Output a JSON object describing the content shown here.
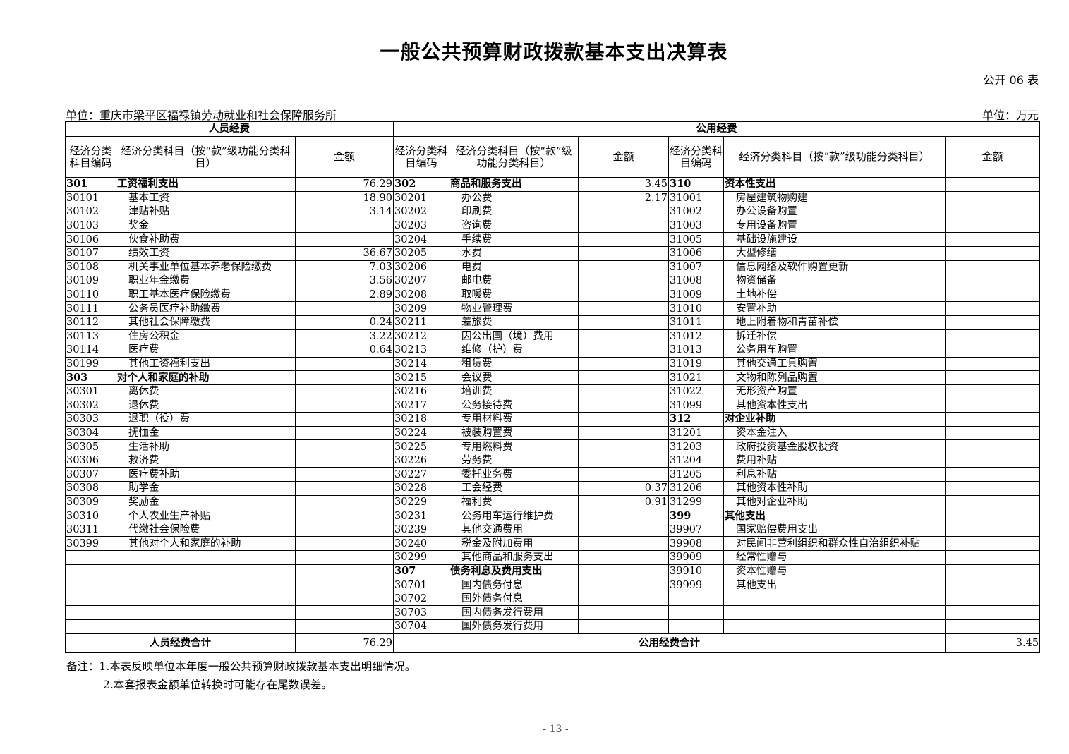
{
  "title": "一般公共预算财政拨款基本支出决算表",
  "table_no": "公开 06 表",
  "unit_org": "单位：重庆市梁平区福禄镇劳动就业和社会保障服务所",
  "unit_money": "单位：万元",
  "groups": {
    "personnel": "人员经费",
    "public": "公用经费"
  },
  "headers": {
    "code": "经济分类科目编码",
    "name_left": "经济分类科目（按“款”级功能分类科目）",
    "name_mid": "经济分类科目（按“款”级功能分类科目）",
    "name_right": "经济分类科目（按“款”级功能分类科目）",
    "amount": "金额"
  },
  "rows": [
    [
      "301",
      "工资福利支出",
      "76.29",
      "302",
      "商品和服务支出",
      "3.45",
      "310",
      "资本性支出",
      ""
    ],
    [
      "30101",
      "基本工资",
      "18.90",
      "30201",
      "办公费",
      "2.17",
      "31001",
      "房屋建筑物购建",
      ""
    ],
    [
      "30102",
      "津贴补贴",
      "3.14",
      "30202",
      "印刷费",
      "",
      "31002",
      "办公设备购置",
      ""
    ],
    [
      "30103",
      "奖金",
      "",
      "30203",
      "咨询费",
      "",
      "31003",
      "专用设备购置",
      ""
    ],
    [
      "30106",
      "伙食补助费",
      "",
      "30204",
      "手续费",
      "",
      "31005",
      "基础设施建设",
      ""
    ],
    [
      "30107",
      "绩效工资",
      "36.67",
      "30205",
      "水费",
      "",
      "31006",
      "大型修缮",
      ""
    ],
    [
      "30108",
      "机关事业单位基本养老保险缴费",
      "7.03",
      "30206",
      "电费",
      "",
      "31007",
      "信息网络及软件购置更新",
      ""
    ],
    [
      "30109",
      "职业年金缴费",
      "3.56",
      "30207",
      "邮电费",
      "",
      "31008",
      "物资储备",
      ""
    ],
    [
      "30110",
      "职工基本医疗保险缴费",
      "2.89",
      "30208",
      "取暖费",
      "",
      "31009",
      "土地补偿",
      ""
    ],
    [
      "30111",
      "公务员医疗补助缴费",
      "",
      "30209",
      "物业管理费",
      "",
      "31010",
      "安置补助",
      ""
    ],
    [
      "30112",
      "其他社会保障缴费",
      "0.24",
      "30211",
      "差旅费",
      "",
      "31011",
      "地上附着物和青苗补偿",
      ""
    ],
    [
      "30113",
      "住房公积金",
      "3.22",
      "30212",
      "因公出国（境）费用",
      "",
      "31012",
      "拆迁补偿",
      ""
    ],
    [
      "30114",
      "医疗费",
      "0.64",
      "30213",
      "维修（护）费",
      "",
      "31013",
      "公务用车购置",
      ""
    ],
    [
      "30199",
      "其他工资福利支出",
      "",
      "30214",
      "租赁费",
      "",
      "31019",
      "其他交通工具购置",
      ""
    ],
    [
      "303",
      "对个人和家庭的补助",
      "",
      "30215",
      "会议费",
      "",
      "31021",
      "文物和陈列品购置",
      ""
    ],
    [
      "30301",
      "离休费",
      "",
      "30216",
      "培训费",
      "",
      "31022",
      "无形资产购置",
      ""
    ],
    [
      "30302",
      "退休费",
      "",
      "30217",
      "公务接待费",
      "",
      "31099",
      "其他资本性支出",
      ""
    ],
    [
      "30303",
      "退职（役）费",
      "",
      "30218",
      "专用材料费",
      "",
      "312",
      "对企业补助",
      ""
    ],
    [
      "30304",
      "抚恤金",
      "",
      "30224",
      "被装购置费",
      "",
      "31201",
      "资本金注入",
      ""
    ],
    [
      "30305",
      "生活补助",
      "",
      "30225",
      "专用燃料费",
      "",
      "31203",
      "政府投资基金股权投资",
      ""
    ],
    [
      "30306",
      "救济费",
      "",
      "30226",
      "劳务费",
      "",
      "31204",
      "费用补贴",
      ""
    ],
    [
      "30307",
      "医疗费补助",
      "",
      "30227",
      "委托业务费",
      "",
      "31205",
      "利息补贴",
      ""
    ],
    [
      "30308",
      "助学金",
      "",
      "30228",
      "工会经费",
      "0.37",
      "31206",
      "其他资本性补助",
      ""
    ],
    [
      "30309",
      "奖励金",
      "",
      "30229",
      "福利费",
      "0.91",
      "31299",
      "其他对企业补助",
      ""
    ],
    [
      "30310",
      "个人农业生产补贴",
      "",
      "30231",
      "公务用车运行维护费",
      "",
      "399",
      "其他支出",
      ""
    ],
    [
      "30311",
      "代缴社会保险费",
      "",
      "30239",
      "其他交通费用",
      "",
      "39907",
      "国家赔偿费用支出",
      ""
    ],
    [
      "30399",
      "其他对个人和家庭的补助",
      "",
      "30240",
      "税金及附加费用",
      "",
      "39908",
      "对民间非营利组织和群众性自治组织补贴",
      ""
    ],
    [
      "",
      "",
      "",
      "30299",
      "其他商品和服务支出",
      "",
      "39909",
      "经常性赠与",
      ""
    ],
    [
      "",
      "",
      "",
      "307",
      "债务利息及费用支出",
      "",
      "39910",
      "资本性赠与",
      ""
    ],
    [
      "",
      "",
      "",
      "30701",
      "国内债务付息",
      "",
      "39999",
      "其他支出",
      ""
    ],
    [
      "",
      "",
      "",
      "30702",
      "国外债务付息",
      "",
      "",
      "",
      ""
    ],
    [
      "",
      "",
      "",
      "30703",
      "国内债务发行费用",
      "",
      "",
      "",
      ""
    ],
    [
      "",
      "",
      "",
      "30704",
      "国外债务发行费用",
      "",
      "",
      "",
      ""
    ]
  ],
  "totals": {
    "personnel_label": "人员经费合计",
    "personnel_value": "76.29",
    "public_label": "公用经费合计",
    "public_value": "3.45"
  },
  "notes": [
    "备注：1.本表反映单位本年度一般公共预算财政拨款基本支出明细情况。",
    "2.本套报表金额单位转换时可能存在尾数误差。"
  ],
  "page_number": "- 13 -"
}
